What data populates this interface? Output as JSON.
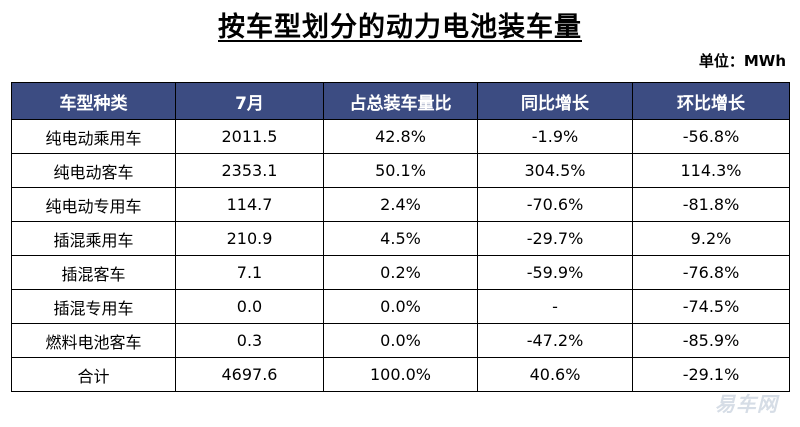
{
  "title": "按车型划分的动力电池装车量",
  "unit": "单位：MWh",
  "table": {
    "headers": [
      "车型种类",
      "7月",
      "占总装车量比",
      "同比增长",
      "环比增长"
    ],
    "rows": [
      [
        "纯电动乘用车",
        "2011.5",
        "42.8%",
        "-1.9%",
        "-56.8%"
      ],
      [
        "纯电动客车",
        "2353.1",
        "50.1%",
        "304.5%",
        "114.3%"
      ],
      [
        "纯电动专用车",
        "114.7",
        "2.4%",
        "-70.6%",
        "-81.8%"
      ],
      [
        "插混乘用车",
        "210.9",
        "4.5%",
        "-29.7%",
        "9.2%"
      ],
      [
        "插混客车",
        "7.1",
        "0.2%",
        "-59.9%",
        "-76.8%"
      ],
      [
        "插混专用车",
        "0.0",
        "0.0%",
        "-",
        "-74.5%"
      ],
      [
        "燃料电池客车",
        "0.3",
        "0.0%",
        "-47.2%",
        "-85.9%"
      ],
      [
        "合计",
        "4697.6",
        "100.0%",
        "40.6%",
        "-29.1%"
      ]
    ]
  },
  "watermark": "易车网",
  "colors": {
    "header_bg": "#3c4c82",
    "header_text": "#ffffff",
    "border": "#000000"
  }
}
